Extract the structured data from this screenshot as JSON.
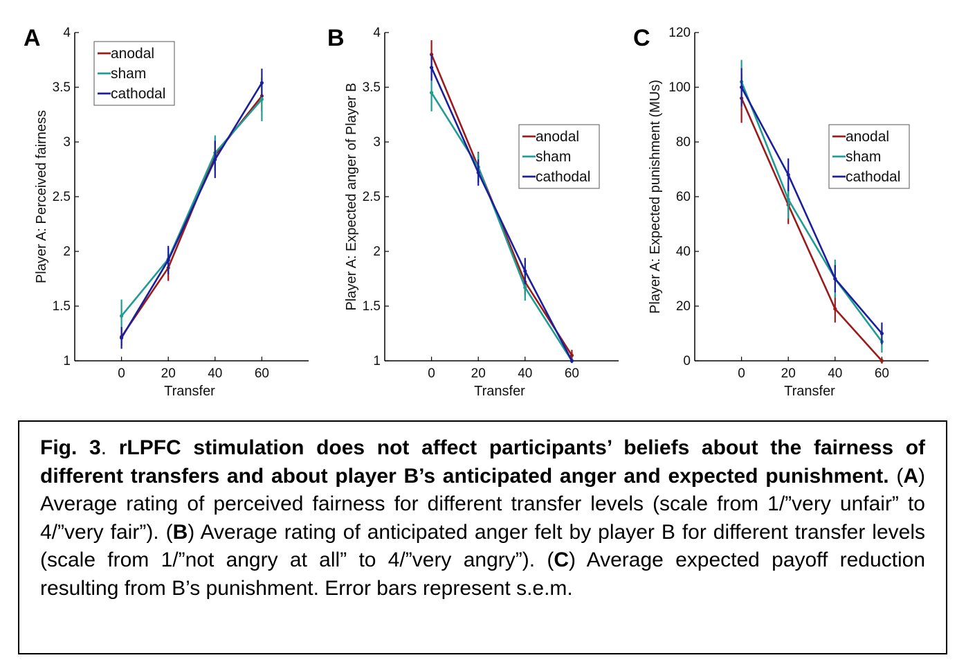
{
  "colors": {
    "anodal": "#9b1b1b",
    "sham": "#1f9c94",
    "cathodal": "#1b1f9b"
  },
  "chart_data": [
    {
      "type": "line",
      "panel": "A",
      "xlabel": "Transfer",
      "ylabel": "Player A: Perceived fairness",
      "x": [
        0,
        20,
        40,
        60
      ],
      "xticks": [
        "0",
        "20",
        "40",
        "60"
      ],
      "xlim": [
        -20,
        80
      ],
      "ylim": [
        1,
        4
      ],
      "yticks": [
        "1",
        "1.5",
        "2",
        "2.5",
        "3",
        "3.5",
        "4"
      ],
      "legend_position": "top-left",
      "series": [
        {
          "name": "anodal",
          "values": [
            1.22,
            1.85,
            2.88,
            3.42
          ],
          "error": [
            0.08,
            0.12,
            0.14,
            0.14
          ]
        },
        {
          "name": "sham",
          "values": [
            1.41,
            1.93,
            2.9,
            3.39
          ],
          "error": [
            0.15,
            0.1,
            0.16,
            0.2
          ]
        },
        {
          "name": "cathodal",
          "values": [
            1.21,
            1.92,
            2.84,
            3.54
          ],
          "error": [
            0.1,
            0.13,
            0.17,
            0.13
          ]
        }
      ]
    },
    {
      "type": "line",
      "panel": "B",
      "xlabel": "Transfer",
      "ylabel": "Player A: Expected anger of Player B",
      "x": [
        0,
        20,
        40,
        60
      ],
      "xticks": [
        "0",
        "20",
        "40",
        "60"
      ],
      "xlim": [
        -20,
        80
      ],
      "ylim": [
        1,
        4
      ],
      "yticks": [
        "1",
        "1.5",
        "2",
        "2.5",
        "3",
        "3.5",
        "4"
      ],
      "legend_position": "top-right",
      "series": [
        {
          "name": "anodal",
          "values": [
            3.8,
            2.77,
            1.72,
            1.05
          ],
          "error": [
            0.13,
            0.14,
            0.12,
            0.05
          ]
        },
        {
          "name": "sham",
          "values": [
            3.45,
            2.77,
            1.67,
            1.0
          ],
          "error": [
            0.17,
            0.13,
            0.12,
            0.02
          ]
        },
        {
          "name": "cathodal",
          "values": [
            3.68,
            2.72,
            1.82,
            1.0
          ],
          "error": [
            0.12,
            0.12,
            0.12,
            0.02
          ]
        }
      ]
    },
    {
      "type": "line",
      "panel": "C",
      "xlabel": "Transfer",
      "ylabel": "Player A: Expected punishment (MUs)",
      "x": [
        0,
        20,
        40,
        60
      ],
      "xticks": [
        "0",
        "20",
        "40",
        "60"
      ],
      "xlim": [
        -20,
        80
      ],
      "ylim": [
        0,
        120
      ],
      "yticks": [
        "0",
        "20",
        "40",
        "60",
        "80",
        "100",
        "120"
      ],
      "legend_position": "top-right",
      "series": [
        {
          "name": "anodal",
          "values": [
            96,
            57,
            19,
            0
          ],
          "error": [
            9,
            7,
            5,
            1
          ]
        },
        {
          "name": "sham",
          "values": [
            102,
            59,
            30,
            7
          ],
          "error": [
            8,
            7,
            7,
            4
          ]
        },
        {
          "name": "cathodal",
          "values": [
            100,
            68,
            30,
            10
          ],
          "error": [
            7,
            6,
            5,
            4
          ]
        }
      ]
    }
  ],
  "caption": {
    "fig_label": "Fig. 3",
    "sep": ". ",
    "title": "rLPFC stimulation does not affect participants’ beliefs about the fairness of different transfers and about player B’s anticipated anger and expected punishment.",
    "open_a": " (",
    "panel_a": "A",
    "text_a": ") Average rating of perceived fairness for different transfer levels (scale from 1/”very unfair” to 4/”very fair”). (",
    "panel_b": "B",
    "text_b": ") Average rating of anticipated anger felt by player B for different transfer levels (scale from 1/”not angry at all” to 4/”very angry”). (",
    "panel_c": "C",
    "text_c": ") Average expected payoff reduction resulting from B’s punishment. Error bars represent s.e.m."
  }
}
